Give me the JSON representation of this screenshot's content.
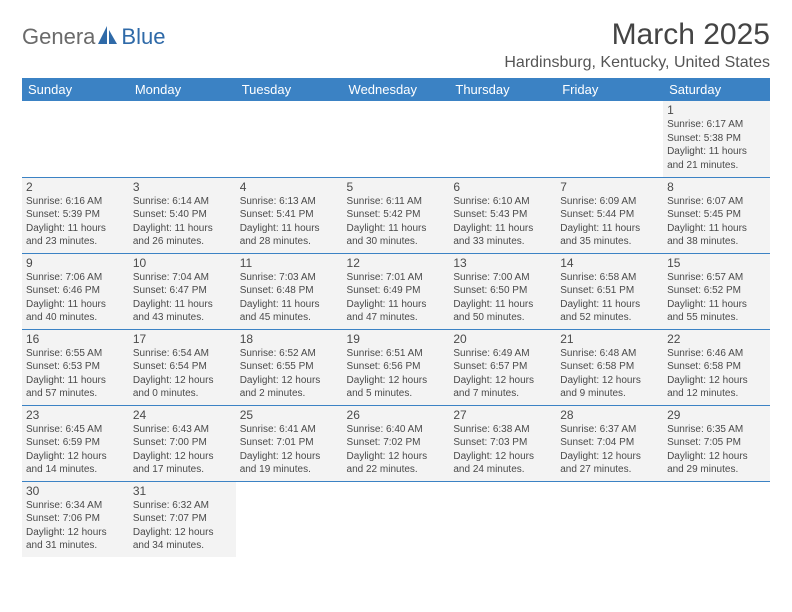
{
  "logo": {
    "part1": "Genera",
    "part2": "Blue"
  },
  "title": "March 2025",
  "location": "Hardinsburg, Kentucky, United States",
  "header_bg": "#3b82c4",
  "cell_bg": "#f3f3f3",
  "border_color": "#3b82c4",
  "daynames": [
    "Sunday",
    "Monday",
    "Tuesday",
    "Wednesday",
    "Thursday",
    "Friday",
    "Saturday"
  ],
  "weeks": [
    [
      null,
      null,
      null,
      null,
      null,
      null,
      {
        "n": "1",
        "sr": "6:17 AM",
        "ss": "5:38 PM",
        "dl": "11 hours and 21 minutes."
      }
    ],
    [
      {
        "n": "2",
        "sr": "6:16 AM",
        "ss": "5:39 PM",
        "dl": "11 hours and 23 minutes."
      },
      {
        "n": "3",
        "sr": "6:14 AM",
        "ss": "5:40 PM",
        "dl": "11 hours and 26 minutes."
      },
      {
        "n": "4",
        "sr": "6:13 AM",
        "ss": "5:41 PM",
        "dl": "11 hours and 28 minutes."
      },
      {
        "n": "5",
        "sr": "6:11 AM",
        "ss": "5:42 PM",
        "dl": "11 hours and 30 minutes."
      },
      {
        "n": "6",
        "sr": "6:10 AM",
        "ss": "5:43 PM",
        "dl": "11 hours and 33 minutes."
      },
      {
        "n": "7",
        "sr": "6:09 AM",
        "ss": "5:44 PM",
        "dl": "11 hours and 35 minutes."
      },
      {
        "n": "8",
        "sr": "6:07 AM",
        "ss": "5:45 PM",
        "dl": "11 hours and 38 minutes."
      }
    ],
    [
      {
        "n": "9",
        "sr": "7:06 AM",
        "ss": "6:46 PM",
        "dl": "11 hours and 40 minutes."
      },
      {
        "n": "10",
        "sr": "7:04 AM",
        "ss": "6:47 PM",
        "dl": "11 hours and 43 minutes."
      },
      {
        "n": "11",
        "sr": "7:03 AM",
        "ss": "6:48 PM",
        "dl": "11 hours and 45 minutes."
      },
      {
        "n": "12",
        "sr": "7:01 AM",
        "ss": "6:49 PM",
        "dl": "11 hours and 47 minutes."
      },
      {
        "n": "13",
        "sr": "7:00 AM",
        "ss": "6:50 PM",
        "dl": "11 hours and 50 minutes."
      },
      {
        "n": "14",
        "sr": "6:58 AM",
        "ss": "6:51 PM",
        "dl": "11 hours and 52 minutes."
      },
      {
        "n": "15",
        "sr": "6:57 AM",
        "ss": "6:52 PM",
        "dl": "11 hours and 55 minutes."
      }
    ],
    [
      {
        "n": "16",
        "sr": "6:55 AM",
        "ss": "6:53 PM",
        "dl": "11 hours and 57 minutes."
      },
      {
        "n": "17",
        "sr": "6:54 AM",
        "ss": "6:54 PM",
        "dl": "12 hours and 0 minutes."
      },
      {
        "n": "18",
        "sr": "6:52 AM",
        "ss": "6:55 PM",
        "dl": "12 hours and 2 minutes."
      },
      {
        "n": "19",
        "sr": "6:51 AM",
        "ss": "6:56 PM",
        "dl": "12 hours and 5 minutes."
      },
      {
        "n": "20",
        "sr": "6:49 AM",
        "ss": "6:57 PM",
        "dl": "12 hours and 7 minutes."
      },
      {
        "n": "21",
        "sr": "6:48 AM",
        "ss": "6:58 PM",
        "dl": "12 hours and 9 minutes."
      },
      {
        "n": "22",
        "sr": "6:46 AM",
        "ss": "6:58 PM",
        "dl": "12 hours and 12 minutes."
      }
    ],
    [
      {
        "n": "23",
        "sr": "6:45 AM",
        "ss": "6:59 PM",
        "dl": "12 hours and 14 minutes."
      },
      {
        "n": "24",
        "sr": "6:43 AM",
        "ss": "7:00 PM",
        "dl": "12 hours and 17 minutes."
      },
      {
        "n": "25",
        "sr": "6:41 AM",
        "ss": "7:01 PM",
        "dl": "12 hours and 19 minutes."
      },
      {
        "n": "26",
        "sr": "6:40 AM",
        "ss": "7:02 PM",
        "dl": "12 hours and 22 minutes."
      },
      {
        "n": "27",
        "sr": "6:38 AM",
        "ss": "7:03 PM",
        "dl": "12 hours and 24 minutes."
      },
      {
        "n": "28",
        "sr": "6:37 AM",
        "ss": "7:04 PM",
        "dl": "12 hours and 27 minutes."
      },
      {
        "n": "29",
        "sr": "6:35 AM",
        "ss": "7:05 PM",
        "dl": "12 hours and 29 minutes."
      }
    ],
    [
      {
        "n": "30",
        "sr": "6:34 AM",
        "ss": "7:06 PM",
        "dl": "12 hours and 31 minutes."
      },
      {
        "n": "31",
        "sr": "6:32 AM",
        "ss": "7:07 PM",
        "dl": "12 hours and 34 minutes."
      },
      null,
      null,
      null,
      null,
      null
    ]
  ],
  "labels": {
    "sunrise": "Sunrise:",
    "sunset": "Sunset:",
    "daylight": "Daylight:"
  }
}
